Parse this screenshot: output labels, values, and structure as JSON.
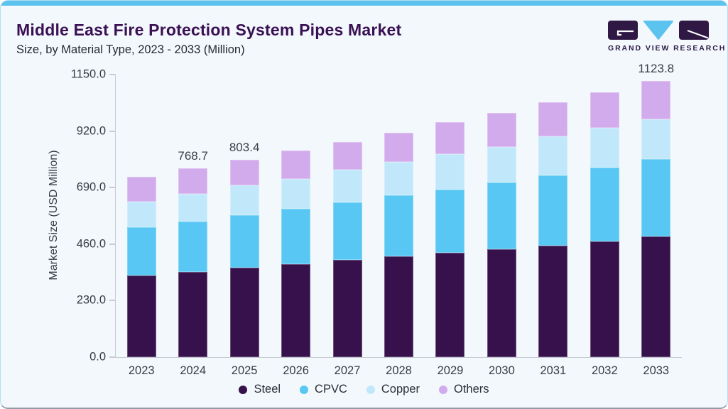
{
  "header": {
    "title": "Middle East Fire Protection System Pipes Market",
    "subtitle": "Size, by Material Type, 2023 - 2033 (Million)"
  },
  "logo": {
    "text": "GRAND VIEW RESEARCH",
    "purple": "#2f1844",
    "blue": "#5cc2ee"
  },
  "chart_data": {
    "type": "bar",
    "stacked": true,
    "title": "Middle East Fire Protection System Pipes Market Size, by Material Type, 2023 - 2033 (Million)",
    "categories": [
      "2023",
      "2024",
      "2025",
      "2026",
      "2027",
      "2028",
      "2029",
      "2030",
      "2031",
      "2032",
      "2033"
    ],
    "series": [
      {
        "name": "Steel",
        "color": "#36114b",
        "values": [
          332,
          348,
          363,
          380,
          396,
          411,
          425,
          440,
          455,
          472,
          490
        ]
      },
      {
        "name": "CPVC",
        "color": "#58c7f3",
        "values": [
          196,
          203,
          214,
          223,
          235,
          247,
          258,
          272,
          285,
          300,
          315
        ]
      },
      {
        "name": "Copper",
        "color": "#c0e8fa",
        "values": [
          106,
          113,
          122,
          122,
          133,
          136,
          143,
          143,
          160,
          160,
          164
        ]
      },
      {
        "name": "Others",
        "color": "#d2abec",
        "values": [
          101,
          104.7,
          104.4,
          115,
          112,
          118,
          130,
          140,
          136,
          146,
          154.8
        ]
      }
    ],
    "bar_value_labels": [
      "",
      "768.7",
      "803.4",
      "",
      "",
      "",
      "",
      "",
      "",
      "",
      "1123.8"
    ],
    "labeled_totals": {
      "2024": 768.7,
      "2025": 803.4,
      "2033": 1123.8
    },
    "ylabel": "Market Size (USD Million)",
    "ylim": [
      0,
      1150
    ],
    "ytick_values": [
      0,
      230,
      460,
      690,
      920,
      1150
    ],
    "ytick_labels": [
      "0.0",
      "230.0",
      "460.0",
      "690.0",
      "920.0",
      "1150.0"
    ],
    "grid": false,
    "legend_position": "bottom",
    "colors": {
      "background": "#f2f8fc",
      "accent_strip": "#5cc2ee",
      "title_text": "#3a1053",
      "axis_text": "#3a3a43",
      "axis_line": "#c6cbd4"
    }
  }
}
